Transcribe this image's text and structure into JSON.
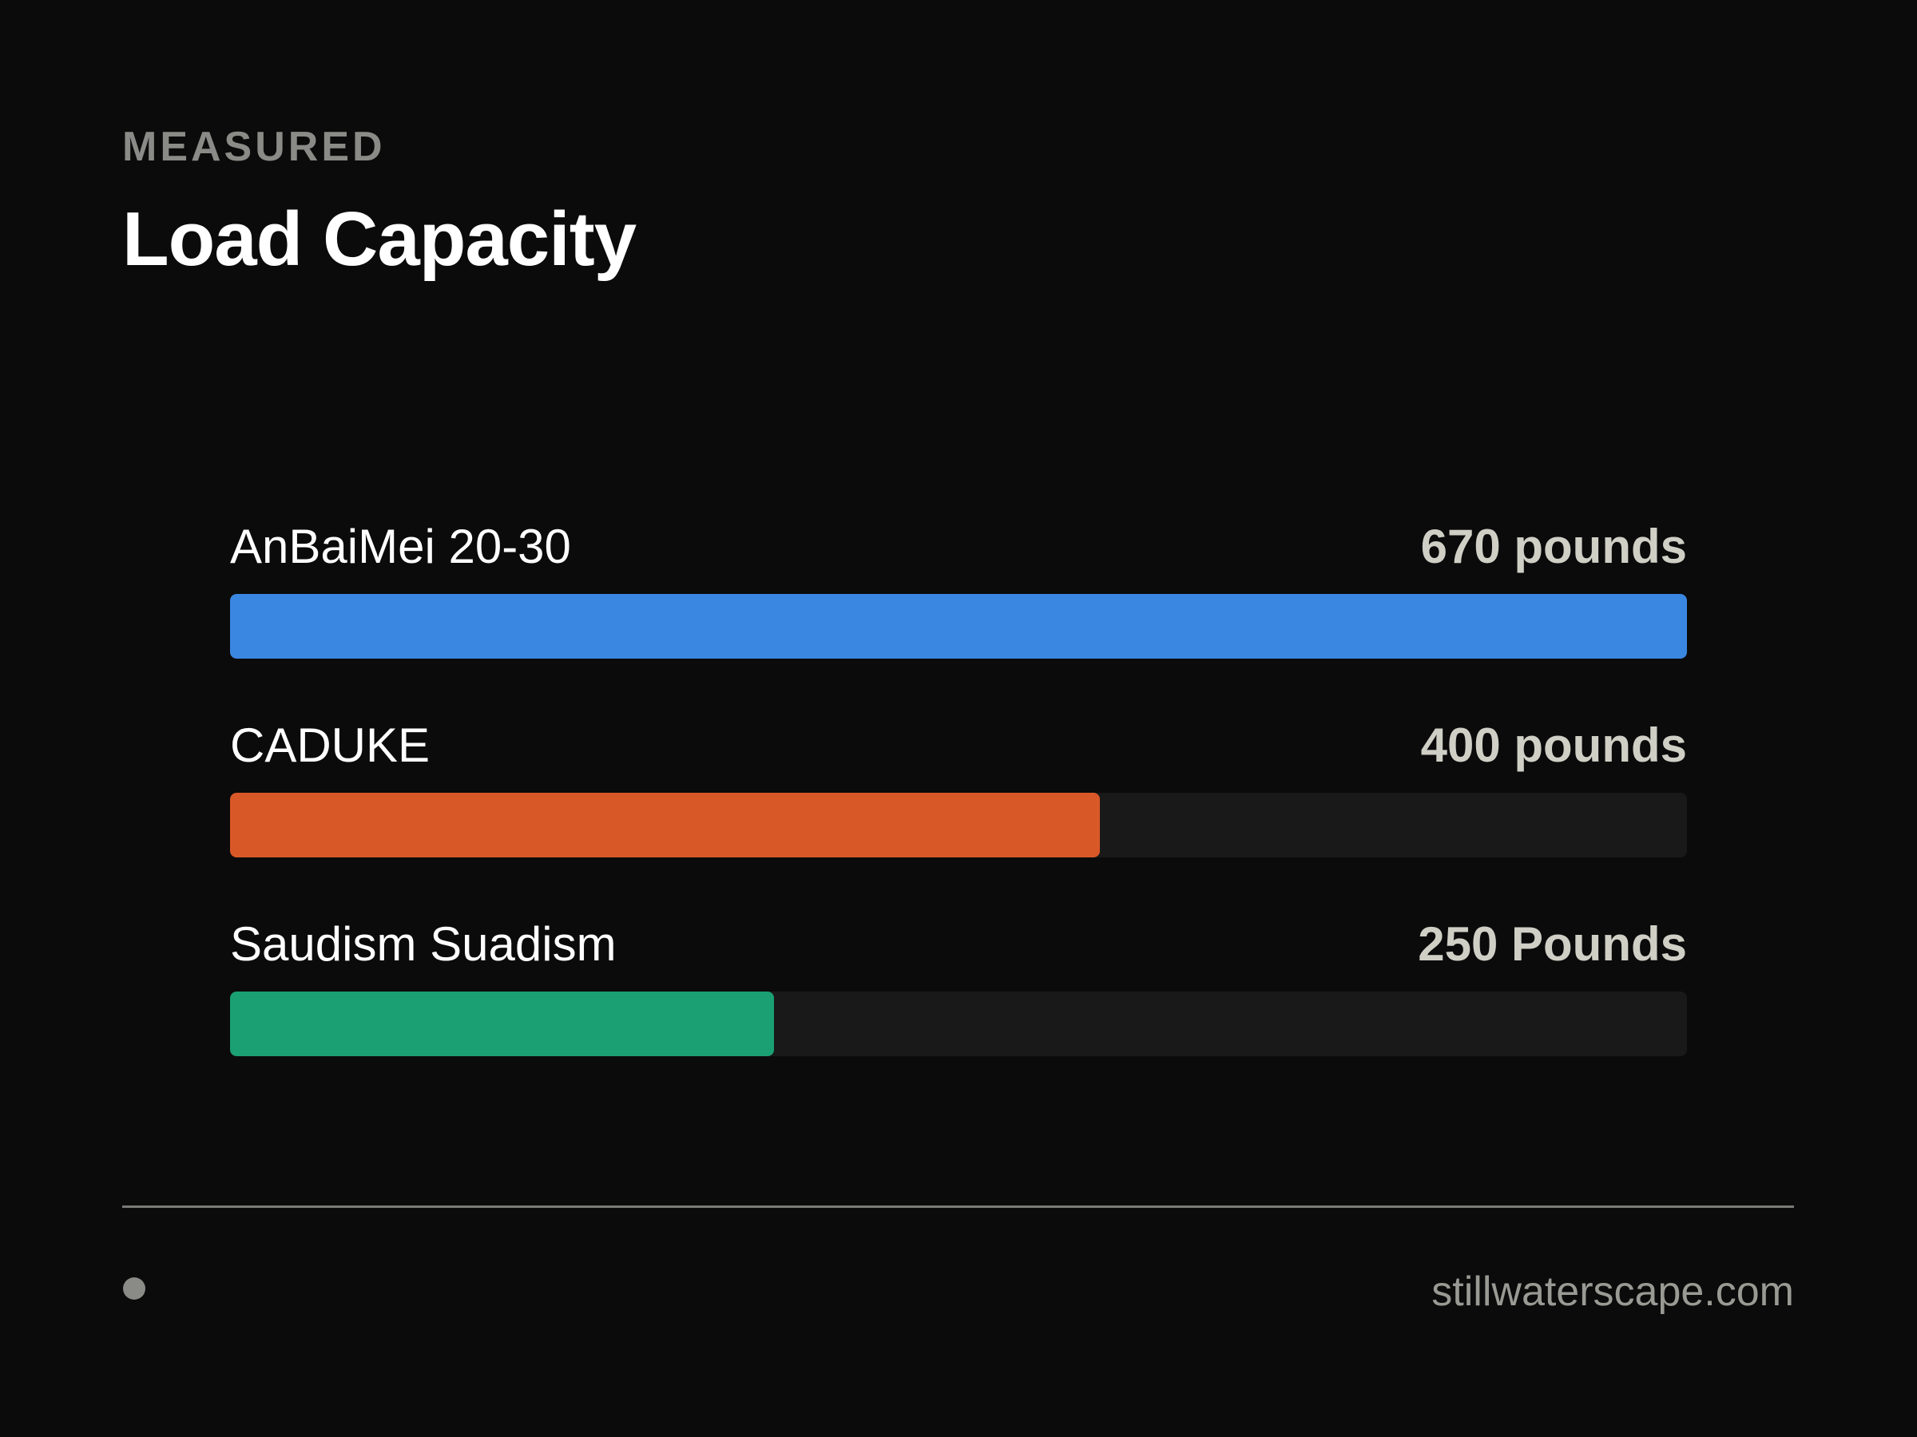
{
  "header": {
    "eyebrow": "MEASURED",
    "title": "Load Capacity"
  },
  "chart_data": {
    "type": "bar",
    "orientation": "horizontal",
    "title": "Load Capacity",
    "categories": [
      "AnBaiMei 20-30",
      "CADUKE",
      "Saudism Suadism"
    ],
    "values": [
      670,
      400,
      250
    ],
    "value_labels": [
      "670 pounds",
      "400 pounds",
      "250 Pounds"
    ],
    "colors": [
      "#3a87e2",
      "#d95827",
      "#1aa073"
    ],
    "xlim": [
      0,
      670
    ],
    "grid": false,
    "legend": "none"
  },
  "footer": {
    "site": "stillwaterscape.com"
  },
  "colors": {
    "background": "#0b0b0b",
    "track": "#191919",
    "muted_text": "#8a8a86",
    "value_text": "#cfcfc6"
  }
}
